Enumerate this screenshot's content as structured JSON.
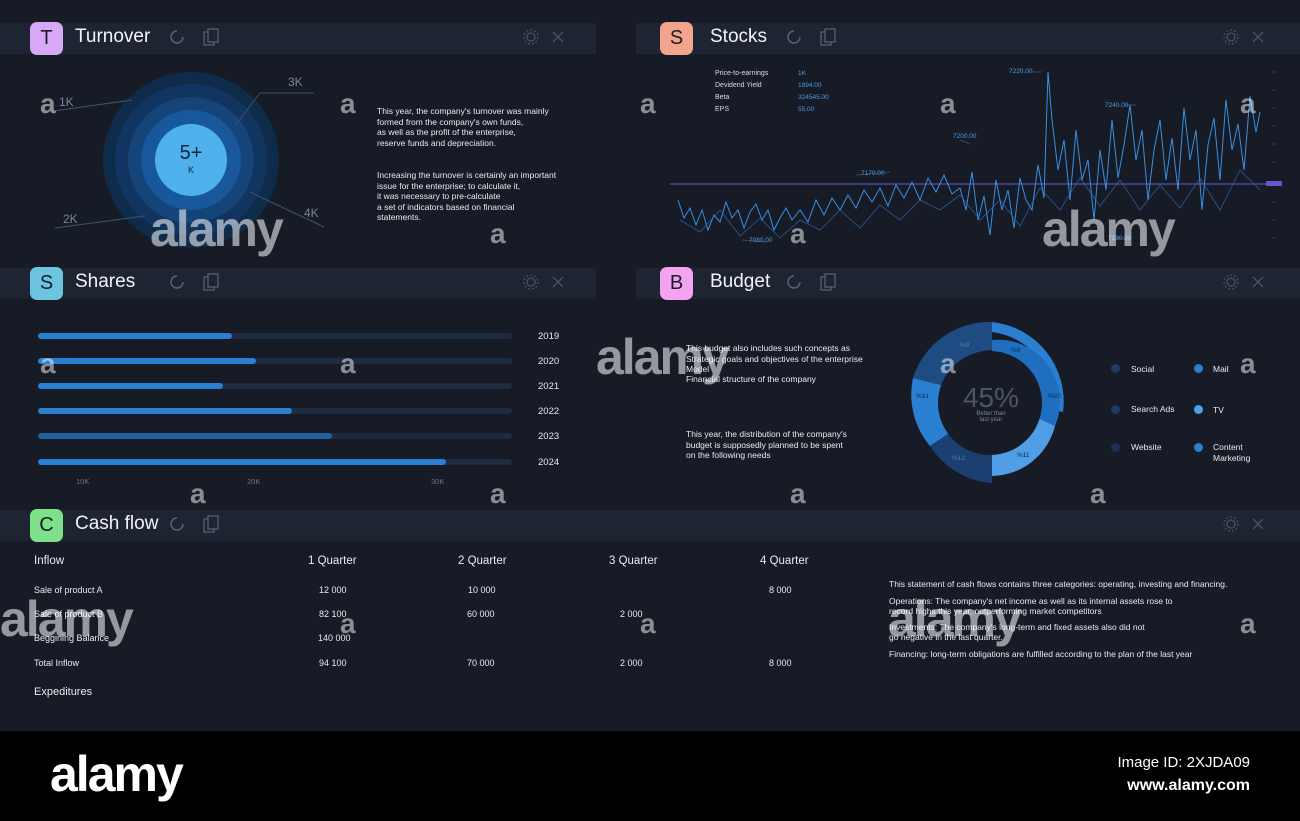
{
  "turnover": {
    "letter": "T",
    "title": "Turnover",
    "center_value": "5+",
    "center_unit": "K",
    "labels": [
      "1K",
      "3K",
      "2K",
      "4K"
    ],
    "text1": [
      "This year, the company's turnover was mainly",
      "formed from the company's own funds,",
      "as well as the profit of the enterprise,",
      "reserve funds and depreciation."
    ],
    "text2": [
      "Increasing the turnover is certainly an important",
      "issue for the enterprise; to calculate it,",
      "it was necessary to pre-calculate",
      "a set of indicators based on financial",
      "statements."
    ]
  },
  "stocks": {
    "letter": "S",
    "title": "Stocks",
    "metrics": [
      {
        "label": "Price-to-earnings",
        "value": "1K"
      },
      {
        "label": "Devidend Yield",
        "value": "1894.00"
      },
      {
        "label": "Beta",
        "value": "324545.00"
      },
      {
        "label": "EPS",
        "value": "55.00"
      }
    ],
    "price_labels": [
      "7220.00",
      "7240.00",
      "7200.00",
      "7170.00",
      "7080.00",
      "7130.00"
    ]
  },
  "shares": {
    "letter": "S",
    "title": "Shares",
    "years": [
      "2019",
      "2020",
      "2021",
      "2022",
      "2023",
      "2024"
    ],
    "fill_fraction": [
      0.41,
      0.46,
      0.39,
      0.535,
      0.62,
      0.86
    ],
    "fill_color": [
      "#2a7fd0",
      "#2a7fd0",
      "#2a7fd0",
      "#2a7fd0",
      "#22609e",
      "#2a7fd0"
    ],
    "xticks": [
      "10K",
      "20K",
      "30K"
    ]
  },
  "budget": {
    "letter": "B",
    "title": "Budget",
    "text1": [
      "This budget also includes such concepts as",
      "Strategic goals and objectives of the enterprise",
      "Model",
      "Financial structure of the company"
    ],
    "text2": [
      "This year, the distribution of the company's",
      "budget is supposedly planned to be spent",
      "on the following needs"
    ],
    "percent": "45%",
    "subtitle": [
      "Better than",
      "last year"
    ],
    "segment_labels": [
      "%9",
      "%9",
      "%20",
      "%11",
      "%12",
      "%31"
    ],
    "legend": [
      {
        "label": "Social",
        "color": "#1f3a63"
      },
      {
        "label": "Mail",
        "color": "#2a7fd0"
      },
      {
        "label": "Search Ads",
        "color": "#1f3a63"
      },
      {
        "label": "TV",
        "color": "#4f9ee6"
      },
      {
        "label": "Website",
        "color": "#1a2f52"
      },
      {
        "label": "Content",
        "label2": "Marketing",
        "color": "#2a7fd0"
      }
    ]
  },
  "cashflow": {
    "letter": "C",
    "title": "Cash flow",
    "header": [
      "Inflow",
      "1 Quarter",
      "2 Quarter",
      "3 Quarter",
      "4 Quarter"
    ],
    "rows": [
      {
        "label": "Sale of product A",
        "q1": "12 000",
        "q2": "10 000",
        "q3": "",
        "q4": "8 000"
      },
      {
        "label": "Sale of product B",
        "q1": "82 100",
        "q2": "60 000",
        "q3": "2 000",
        "q4": ""
      },
      {
        "label": "Beggining Balance",
        "q1": "140 000",
        "q2": "",
        "q3": "",
        "q4": ""
      },
      {
        "label": "Total Inflow",
        "q1": "94 100",
        "q2": "70 000",
        "q3": "2 000",
        "q4": "8 000"
      }
    ],
    "footer_label": "Expeditures",
    "notes": [
      "This statement of cash flows contains three categories: operating, investing and financing.",
      "Operations: The company's net income as well as its internal assets rose to",
      "record highs this year, outperforming market competitors",
      "Investments: The company's long-term and fixed assets also did not",
      "go negative in the last quarter.",
      "Financing: long-term obligations are fulfilled according to the plan of the last year"
    ]
  },
  "colors": {
    "turnover_avatar": "#d6a8f5",
    "stocks_avatar": "#f2a48c",
    "shares_avatar": "#6cc4e0",
    "budget_avatar": "#f3a3ef",
    "cashflow_avatar": "#7fe08a",
    "accent": "#2a7fd0"
  },
  "watermark": {
    "brand": "alamy",
    "image_id": "Image ID: 2XJDA09",
    "url": "www.alamy.com"
  }
}
